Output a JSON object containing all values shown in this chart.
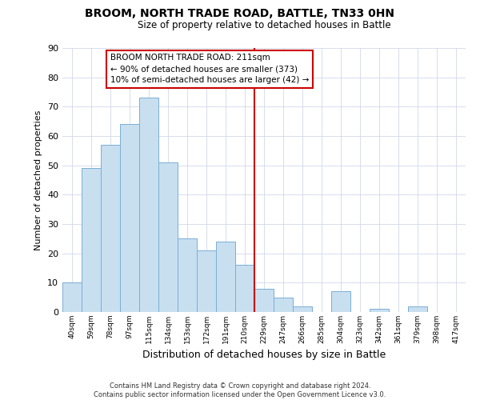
{
  "title": "BROOM, NORTH TRADE ROAD, BATTLE, TN33 0HN",
  "subtitle": "Size of property relative to detached houses in Battle",
  "xlabel": "Distribution of detached houses by size in Battle",
  "ylabel": "Number of detached properties",
  "bar_labels": [
    "40sqm",
    "59sqm",
    "78sqm",
    "97sqm",
    "115sqm",
    "134sqm",
    "153sqm",
    "172sqm",
    "191sqm",
    "210sqm",
    "229sqm",
    "247sqm",
    "266sqm",
    "285sqm",
    "304sqm",
    "323sqm",
    "342sqm",
    "361sqm",
    "379sqm",
    "398sqm",
    "417sqm"
  ],
  "bar_values": [
    10,
    49,
    57,
    64,
    73,
    51,
    25,
    21,
    24,
    16,
    8,
    5,
    2,
    0,
    7,
    0,
    1,
    0,
    2,
    0,
    0
  ],
  "bar_color": "#c8dff0",
  "bar_edge_color": "#7aafd4",
  "vline_index": 9,
  "vline_color": "#cc0000",
  "ylim": [
    0,
    90
  ],
  "yticks": [
    0,
    10,
    20,
    30,
    40,
    50,
    60,
    70,
    80,
    90
  ],
  "ann_line1": "BROOM NORTH TRADE ROAD: 211sqm",
  "ann_line2": "← 90% of detached houses are smaller (373)",
  "ann_line3": "10% of semi-detached houses are larger (42) →",
  "ann_border_color": "#cc0000",
  "footer_text": "Contains HM Land Registry data © Crown copyright and database right 2024.\nContains public sector information licensed under the Open Government Licence v3.0.",
  "bg_color": "#ffffff",
  "grid_color": "#d0d8e8",
  "title_fontsize": 10,
  "subtitle_fontsize": 8.5,
  "ylabel_fontsize": 8,
  "xlabel_fontsize": 9
}
